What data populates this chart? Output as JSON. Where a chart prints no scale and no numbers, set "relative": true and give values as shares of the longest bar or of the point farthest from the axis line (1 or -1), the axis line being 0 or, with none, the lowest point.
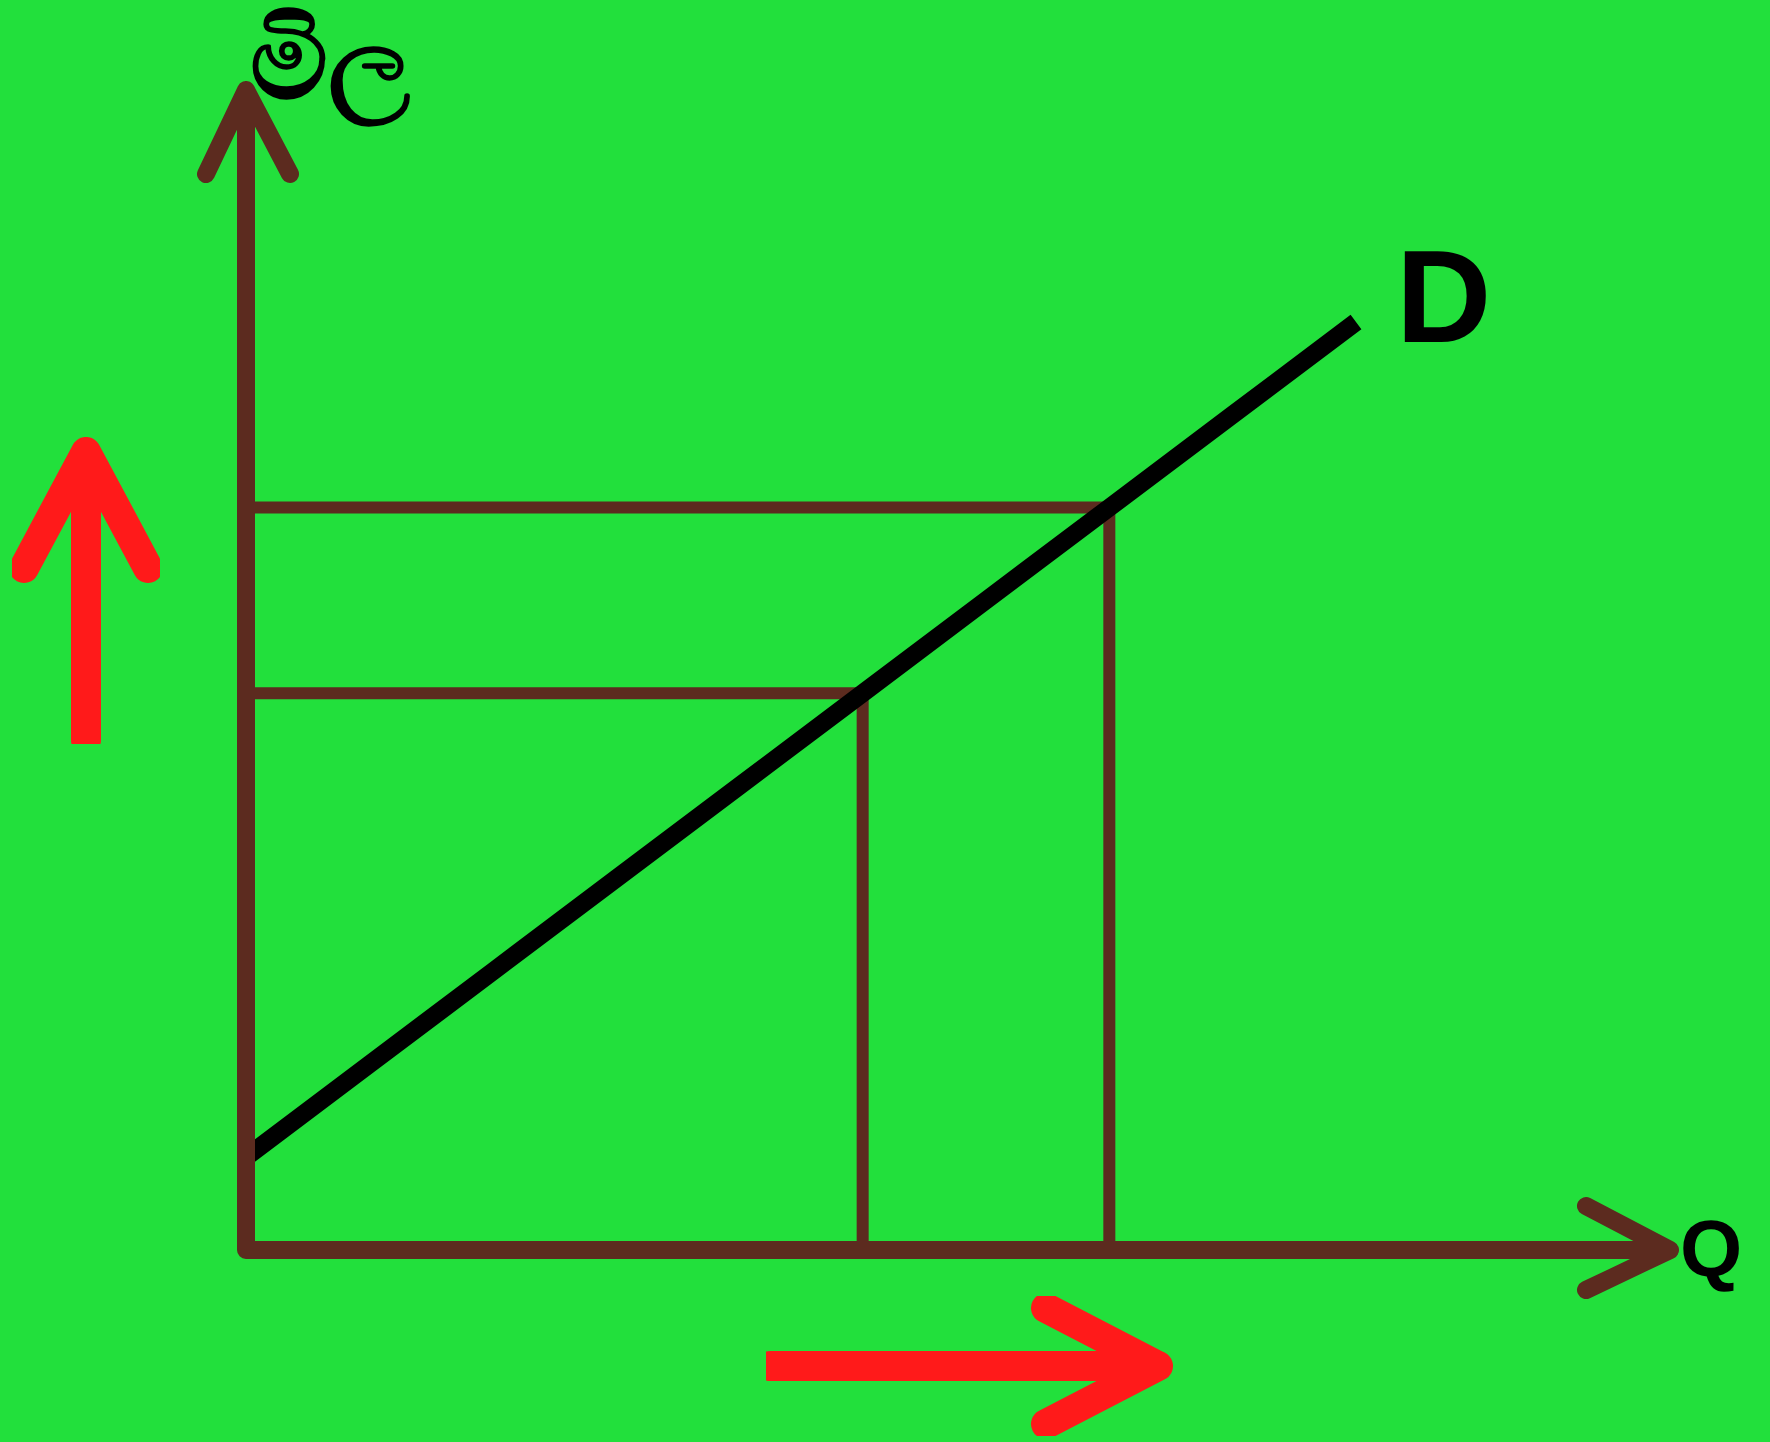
{
  "chart_data": {
    "type": "line",
    "relative": true,
    "xlabel": "Q",
    "ylabel": "මිල",
    "categories": [
      null,
      null,
      null,
      null,
      null,
      null,
      null,
      null,
      null,
      null
    ],
    "tick_labels": false,
    "legend": false,
    "ref_lines": [
      {
        "axis": "y",
        "value": 0.6,
        "color": "#5c2b1f"
      },
      {
        "axis": "y",
        "value": 0.8,
        "color": "#5c2b1f"
      }
    ],
    "marker": "none",
    "line_style": "solid",
    "series": [
      {
        "name": "D",
        "color": "#000000",
        "values": [
          0.1,
          0.2,
          0.3,
          0.4,
          0.5,
          0.6,
          0.7,
          0.8,
          0.9,
          1.0
        ]
      }
    ]
  }
}
